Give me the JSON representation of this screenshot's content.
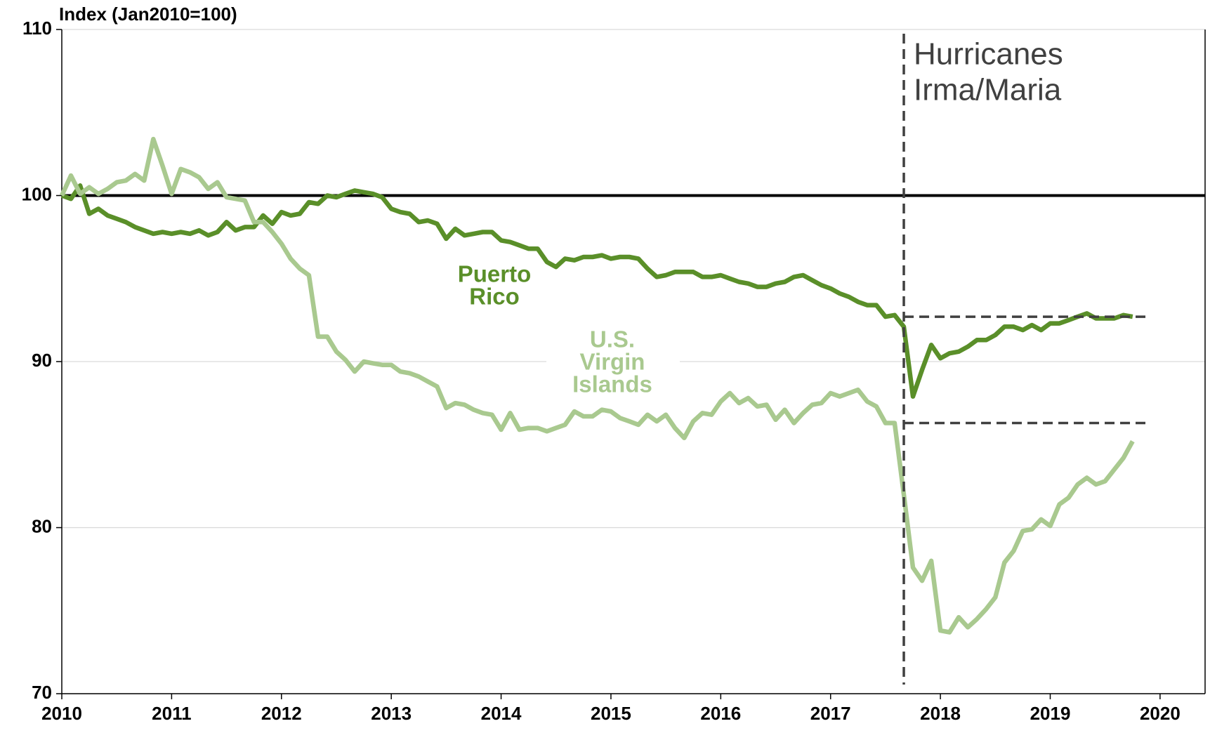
{
  "chart_data": {
    "type": "line",
    "y_axis_label": "Index (Jan2010=100)",
    "x": [
      2010,
      2010.083,
      2010.167,
      2010.25,
      2010.333,
      2010.417,
      2010.5,
      2010.583,
      2010.667,
      2010.75,
      2010.833,
      2010.917,
      2011,
      2011.083,
      2011.167,
      2011.25,
      2011.333,
      2011.417,
      2011.5,
      2011.583,
      2011.667,
      2011.75,
      2011.833,
      2011.917,
      2012,
      2012.083,
      2012.167,
      2012.25,
      2012.333,
      2012.417,
      2012.5,
      2012.583,
      2012.667,
      2012.75,
      2012.833,
      2012.917,
      2013,
      2013.083,
      2013.167,
      2013.25,
      2013.333,
      2013.417,
      2013.5,
      2013.583,
      2013.667,
      2013.75,
      2013.833,
      2013.917,
      2014,
      2014.083,
      2014.167,
      2014.25,
      2014.333,
      2014.417,
      2014.5,
      2014.583,
      2014.667,
      2014.75,
      2014.833,
      2014.917,
      2015,
      2015.083,
      2015.167,
      2015.25,
      2015.333,
      2015.417,
      2015.5,
      2015.583,
      2015.667,
      2015.75,
      2015.833,
      2015.917,
      2016,
      2016.083,
      2016.167,
      2016.25,
      2016.333,
      2016.417,
      2016.5,
      2016.583,
      2016.667,
      2016.75,
      2016.833,
      2016.917,
      2017,
      2017.083,
      2017.167,
      2017.25,
      2017.333,
      2017.417,
      2017.5,
      2017.583,
      2017.667,
      2017.75,
      2017.833,
      2017.917,
      2018,
      2018.083,
      2018.167,
      2018.25,
      2018.333,
      2018.417,
      2018.5,
      2018.583,
      2018.667,
      2018.75,
      2018.833,
      2018.917,
      2019,
      2019.083,
      2019.167,
      2019.25,
      2019.333,
      2019.417,
      2019.5,
      2019.583,
      2019.667,
      2019.75
    ],
    "series": [
      {
        "name": "Puerto Rico",
        "label_lines": [
          "Puerto",
          "Rico"
        ],
        "color": "#5a8f29",
        "values": [
          100,
          99.8,
          100.6,
          98.9,
          99.2,
          98.8,
          98.6,
          98.4,
          98.1,
          97.9,
          97.7,
          97.8,
          97.7,
          97.8,
          97.7,
          97.9,
          97.6,
          97.8,
          98.4,
          97.9,
          98.1,
          98.1,
          98.8,
          98.3,
          99.0,
          98.8,
          98.9,
          99.6,
          99.5,
          100.0,
          99.9,
          100.1,
          100.3,
          100.2,
          100.1,
          99.9,
          99.2,
          99.0,
          98.9,
          98.4,
          98.5,
          98.3,
          97.4,
          98.0,
          97.6,
          97.7,
          97.8,
          97.8,
          97.3,
          97.2,
          97.0,
          96.8,
          96.8,
          96.0,
          95.7,
          96.2,
          96.1,
          96.3,
          96.3,
          96.4,
          96.2,
          96.3,
          96.3,
          96.2,
          95.6,
          95.1,
          95.2,
          95.4,
          95.4,
          95.4,
          95.1,
          95.1,
          95.2,
          95.0,
          94.8,
          94.7,
          94.5,
          94.5,
          94.7,
          94.8,
          95.1,
          95.2,
          94.9,
          94.6,
          94.4,
          94.1,
          93.9,
          93.6,
          93.4,
          93.4,
          92.7,
          92.8,
          92.1,
          87.9,
          89.5,
          91.0,
          90.2,
          90.5,
          90.6,
          90.9,
          91.3,
          91.3,
          91.6,
          92.1,
          92.1,
          91.9,
          92.2,
          91.9,
          92.3,
          92.3,
          92.5,
          92.7,
          92.9,
          92.6,
          92.6,
          92.6,
          92.8,
          92.7
        ]
      },
      {
        "name": "U.S. Virgin Islands",
        "label_lines": [
          "U.S.",
          "Virgin",
          "Islands"
        ],
        "color": "#a9c98f",
        "values": [
          100,
          101.2,
          100.1,
          100.5,
          100.1,
          100.4,
          100.8,
          100.9,
          101.3,
          100.9,
          103.4,
          101.8,
          100.1,
          101.6,
          101.4,
          101.1,
          100.4,
          100.8,
          99.9,
          99.8,
          99.7,
          98.4,
          98.4,
          97.8,
          97.1,
          96.2,
          95.6,
          95.2,
          91.5,
          91.5,
          90.6,
          90.1,
          89.4,
          90.0,
          89.9,
          89.8,
          89.8,
          89.4,
          89.3,
          89.1,
          88.8,
          88.5,
          87.2,
          87.5,
          87.4,
          87.1,
          86.9,
          86.8,
          85.9,
          86.9,
          85.9,
          86.0,
          86.0,
          85.8,
          86.0,
          86.2,
          87.0,
          86.7,
          86.7,
          87.1,
          87.0,
          86.6,
          86.4,
          86.2,
          86.8,
          86.4,
          86.8,
          86.0,
          85.4,
          86.4,
          86.9,
          86.8,
          87.6,
          88.1,
          87.5,
          87.8,
          87.3,
          87.4,
          86.5,
          87.1,
          86.3,
          86.9,
          87.4,
          87.5,
          88.1,
          87.9,
          88.1,
          88.3,
          87.6,
          87.3,
          86.3,
          86.3,
          82.0,
          77.6,
          76.8,
          78.0,
          73.8,
          73.7,
          74.6,
          74.0,
          74.5,
          75.1,
          75.8,
          77.9,
          78.6,
          79.8,
          79.9,
          80.5,
          80.1,
          81.4,
          81.8,
          82.6,
          83.0,
          82.6,
          82.8,
          83.5,
          84.2,
          85.2
        ]
      }
    ],
    "xlim": [
      2010,
      2020.41
    ],
    "xticks": [
      2010,
      2011,
      2012,
      2013,
      2014,
      2015,
      2016,
      2017,
      2018,
      2019,
      2020
    ],
    "ylim": [
      70,
      110
    ],
    "yticks": [
      70,
      80,
      90,
      100,
      110
    ],
    "grid": true,
    "reference_line": {
      "y": 100,
      "color": "#000000"
    },
    "event_line": {
      "x": 2017.667,
      "label_lines": [
        "Hurricanes",
        "Irma/Maria"
      ]
    },
    "level_lines": [
      {
        "y": 92.7,
        "x": [
          2017.667,
          2019.9
        ]
      },
      {
        "y": 86.3,
        "x": [
          2017.667,
          2019.9
        ]
      }
    ]
  }
}
